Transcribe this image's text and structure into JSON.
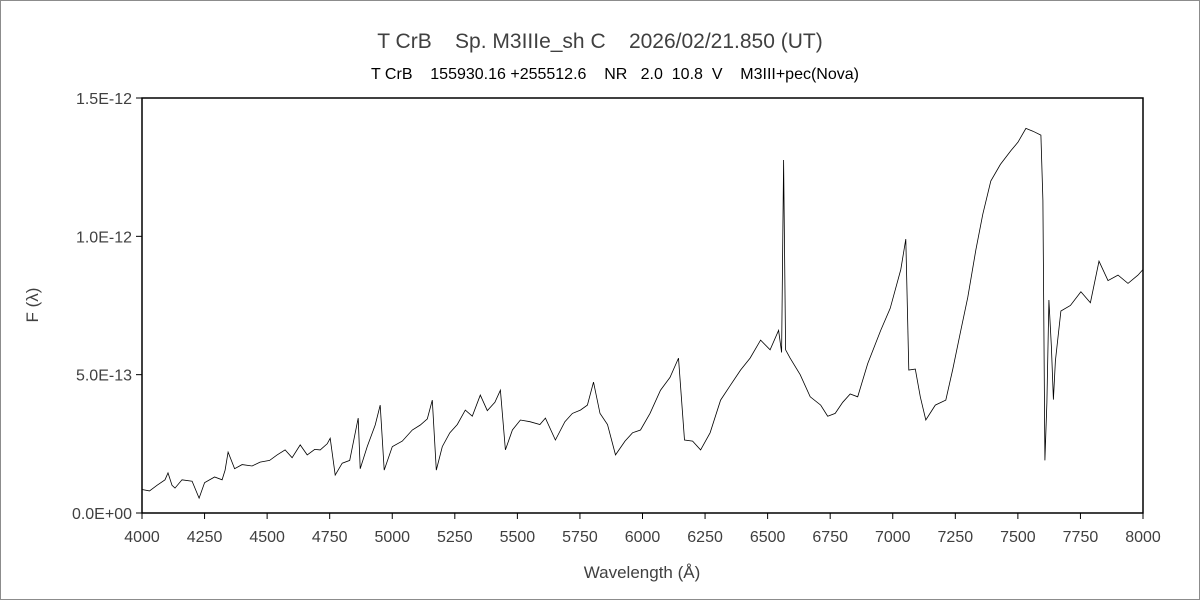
{
  "chart_data": {
    "type": "line",
    "title": "T CrB    Sp. M3IIIe_sh C    2026/02/21.850 (UT)",
    "subtitle": "T CrB    155930.16 +255512.6    NR   2.0  10.8  V    M3III+pec(Nova)",
    "xlabel": "Wavelength (Å)",
    "ylabel": "F (λ)",
    "xlim": [
      4000,
      8000
    ],
    "ylim": [
      0,
      1.5e-12
    ],
    "xticks": [
      "4000",
      "4250",
      "4500",
      "4750",
      "5000",
      "5250",
      "5500",
      "5750",
      "6000",
      "6250",
      "6500",
      "6750",
      "7000",
      "7250",
      "7500",
      "7750",
      "8000"
    ],
    "yticks": [
      "0.0E+00",
      "5.0E-13",
      "1.0E-12",
      "1.5E-12"
    ],
    "ytick_values": [
      0,
      5e-13,
      1e-12,
      1.5e-12
    ],
    "grid": false,
    "line_color": "#000000",
    "series": [
      {
        "x": [
          4000,
          4030,
          4060,
          4092,
          4104,
          4120,
          4132,
          4160,
          4200,
          4228,
          4250,
          4290,
          4320,
          4332,
          4344,
          4370,
          4400,
          4440,
          4472,
          4510,
          4540,
          4572,
          4600,
          4632,
          4660,
          4690,
          4712,
          4740,
          4752,
          4772,
          4800,
          4830,
          4864,
          4872,
          4900,
          4932,
          4952,
          4968,
          5000,
          5040,
          5080,
          5112,
          5140,
          5160,
          5176,
          5200,
          5230,
          5260,
          5292,
          5320,
          5352,
          5380,
          5410,
          5432,
          5452,
          5480,
          5512,
          5550,
          5590,
          5612,
          5652,
          5690,
          5720,
          5752,
          5780,
          5804,
          5830,
          5860,
          5892,
          5930,
          5960,
          5992,
          6030,
          6072,
          6110,
          6144,
          6168,
          6200,
          6232,
          6270,
          6312,
          6350,
          6392,
          6430,
          6472,
          6510,
          6544,
          6556,
          6564,
          6572,
          6590,
          6630,
          6670,
          6712,
          6740,
          6770,
          6800,
          6830,
          6860,
          6900,
          6952,
          6990,
          7032,
          7052,
          7064,
          7090,
          7110,
          7132,
          7170,
          7212,
          7240,
          7272,
          7300,
          7332,
          7360,
          7392,
          7430,
          7472,
          7500,
          7532,
          7560,
          7592,
          7600,
          7608,
          7616,
          7624,
          7634,
          7642,
          7650,
          7672,
          7710,
          7752,
          7790,
          7824,
          7860,
          7900,
          7940,
          7980,
          8000
        ],
        "y": [
          0.85,
          0.8,
          1.0,
          1.2,
          1.45,
          1.0,
          0.9,
          1.2,
          1.15,
          0.54,
          1.1,
          1.3,
          1.2,
          1.55,
          2.2,
          1.6,
          1.75,
          1.7,
          1.84,
          1.9,
          2.1,
          2.28,
          2.0,
          2.46,
          2.1,
          2.3,
          2.28,
          2.5,
          2.7,
          1.37,
          1.8,
          1.9,
          3.43,
          1.6,
          2.4,
          3.18,
          3.9,
          1.55,
          2.4,
          2.6,
          3.0,
          3.18,
          3.4,
          4.08,
          1.55,
          2.4,
          2.9,
          3.2,
          3.72,
          3.5,
          4.26,
          3.7,
          4.0,
          4.44,
          2.28,
          3.0,
          3.36,
          3.3,
          3.2,
          3.43,
          2.64,
          3.3,
          3.6,
          3.72,
          3.9,
          4.73,
          3.6,
          3.2,
          2.1,
          2.6,
          2.9,
          3.0,
          3.6,
          4.44,
          4.9,
          5.6,
          2.64,
          2.6,
          2.28,
          2.9,
          4.08,
          4.6,
          5.17,
          5.6,
          6.25,
          5.9,
          6.6,
          5.8,
          12.76,
          5.9,
          5.6,
          5.0,
          4.2,
          3.9,
          3.5,
          3.6,
          4.0,
          4.3,
          4.2,
          5.4,
          6.6,
          7.4,
          8.8,
          9.9,
          5.17,
          5.2,
          4.2,
          3.36,
          3.9,
          4.08,
          5.2,
          6.6,
          7.8,
          9.5,
          10.8,
          12.0,
          12.6,
          13.1,
          13.4,
          13.9,
          13.8,
          13.66,
          11.3,
          1.9,
          4.0,
          7.7,
          6.0,
          4.1,
          5.5,
          7.3,
          7.5,
          8.0,
          7.6,
          9.1,
          8.4,
          8.6,
          8.3,
          8.6,
          8.8
        ]
      }
    ]
  }
}
